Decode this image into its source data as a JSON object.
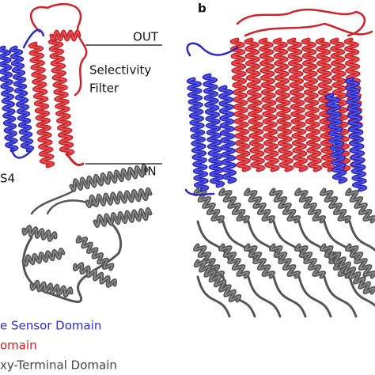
{
  "panel_label": "b",
  "annotations": {
    "out": "OUT",
    "selectivity_filter": [
      "Selectivity",
      "Filter"
    ],
    "in": "IN",
    "s4": "S4"
  },
  "legend": [
    "e Sensor Domain",
    "omain",
    "xy-Terminal Domain"
  ]
}
